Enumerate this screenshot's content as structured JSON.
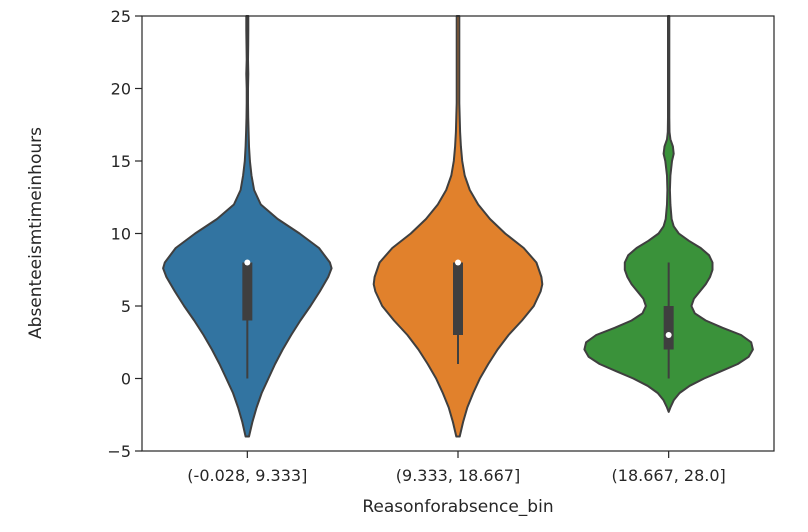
{
  "chart_data": {
    "type": "violin",
    "xlabel": "Reasonforabsence_bin",
    "ylabel": "Absenteeismtimeinhours",
    "ylim": [
      -5,
      25
    ],
    "yticks": [
      -5,
      0,
      5,
      10,
      15,
      20,
      25
    ],
    "grid": false,
    "categories": [
      "(-0.028, 9.333]",
      "(9.333, 18.667]",
      "(18.667, 28.0]"
    ],
    "series": [
      {
        "category": "(-0.028, 9.333]",
        "color": "#3274a1",
        "median": 8,
        "q1": 4,
        "q3": 8,
        "whisker_low": 0,
        "whisker_high": 8,
        "density_profile": [
          [
            -5.1,
            0.0
          ],
          [
            -4,
            0.02
          ],
          [
            -3,
            0.06
          ],
          [
            -2,
            0.11
          ],
          [
            -1,
            0.17
          ],
          [
            0,
            0.25
          ],
          [
            1,
            0.33
          ],
          [
            2,
            0.42
          ],
          [
            3,
            0.52
          ],
          [
            4,
            0.63
          ],
          [
            5,
            0.75
          ],
          [
            6,
            0.86
          ],
          [
            7,
            0.96
          ],
          [
            7.6,
            1.0
          ],
          [
            8,
            0.98
          ],
          [
            9,
            0.85
          ],
          [
            10,
            0.62
          ],
          [
            11,
            0.36
          ],
          [
            12,
            0.16
          ],
          [
            13,
            0.08
          ],
          [
            14,
            0.05
          ],
          [
            15,
            0.03
          ],
          [
            16,
            0.02
          ],
          [
            17,
            0.015
          ],
          [
            18,
            0.01
          ],
          [
            19,
            0.008
          ],
          [
            20,
            0.008
          ],
          [
            21,
            0.012
          ],
          [
            22,
            0.008
          ],
          [
            23,
            0.01
          ],
          [
            24,
            0.012
          ],
          [
            25,
            0.012
          ]
        ]
      },
      {
        "category": "(9.333, 18.667]",
        "color": "#e1812c",
        "median": 8,
        "q1": 3,
        "q3": 8,
        "whisker_low": 1,
        "whisker_high": 8,
        "density_profile": [
          [
            -5.1,
            0.0
          ],
          [
            -4,
            0.02
          ],
          [
            -3,
            0.06
          ],
          [
            -2,
            0.11
          ],
          [
            -1,
            0.18
          ],
          [
            0,
            0.26
          ],
          [
            1,
            0.36
          ],
          [
            2,
            0.47
          ],
          [
            3,
            0.6
          ],
          [
            4,
            0.76
          ],
          [
            5,
            0.9
          ],
          [
            6,
            0.98
          ],
          [
            6.5,
            1.0
          ],
          [
            7,
            0.99
          ],
          [
            8,
            0.93
          ],
          [
            9,
            0.78
          ],
          [
            10,
            0.56
          ],
          [
            11,
            0.38
          ],
          [
            12,
            0.24
          ],
          [
            13,
            0.14
          ],
          [
            14,
            0.08
          ],
          [
            15,
            0.05
          ],
          [
            16,
            0.035
          ],
          [
            17,
            0.025
          ],
          [
            18,
            0.02
          ],
          [
            19,
            0.015
          ],
          [
            20,
            0.015
          ],
          [
            21,
            0.015
          ],
          [
            22,
            0.015
          ],
          [
            23,
            0.015
          ],
          [
            24,
            0.015
          ],
          [
            25,
            0.015
          ]
        ]
      },
      {
        "category": "(18.667, 28.0]",
        "color": "#3a923a",
        "median": 3,
        "q1": 2,
        "q3": 5,
        "whisker_low": 0,
        "whisker_high": 8,
        "density_profile": [
          [
            -2.3,
            0.0
          ],
          [
            -2,
            0.02
          ],
          [
            -1.5,
            0.06
          ],
          [
            -1,
            0.13
          ],
          [
            -0.5,
            0.25
          ],
          [
            0,
            0.42
          ],
          [
            0.5,
            0.62
          ],
          [
            1,
            0.82
          ],
          [
            1.5,
            0.95
          ],
          [
            2,
            1.0
          ],
          [
            2.5,
            0.98
          ],
          [
            3,
            0.86
          ],
          [
            3.5,
            0.64
          ],
          [
            4,
            0.44
          ],
          [
            4.5,
            0.31
          ],
          [
            5,
            0.27
          ],
          [
            5.5,
            0.3
          ],
          [
            6,
            0.37
          ],
          [
            6.5,
            0.44
          ],
          [
            7,
            0.49
          ],
          [
            7.5,
            0.52
          ],
          [
            8,
            0.52
          ],
          [
            8.5,
            0.48
          ],
          [
            9,
            0.38
          ],
          [
            9.5,
            0.24
          ],
          [
            10,
            0.12
          ],
          [
            10.5,
            0.06
          ],
          [
            11,
            0.035
          ],
          [
            12,
            0.02
          ],
          [
            13,
            0.015
          ],
          [
            14,
            0.02
          ],
          [
            15,
            0.04
          ],
          [
            15.5,
            0.06
          ],
          [
            16,
            0.05
          ],
          [
            16.5,
            0.02
          ],
          [
            17,
            0.01
          ],
          [
            18,
            0.008
          ],
          [
            19,
            0.008
          ],
          [
            20,
            0.008
          ],
          [
            21,
            0.008
          ],
          [
            22,
            0.008
          ],
          [
            23,
            0.008
          ],
          [
            24,
            0.008
          ],
          [
            25,
            0.008
          ]
        ]
      }
    ]
  }
}
